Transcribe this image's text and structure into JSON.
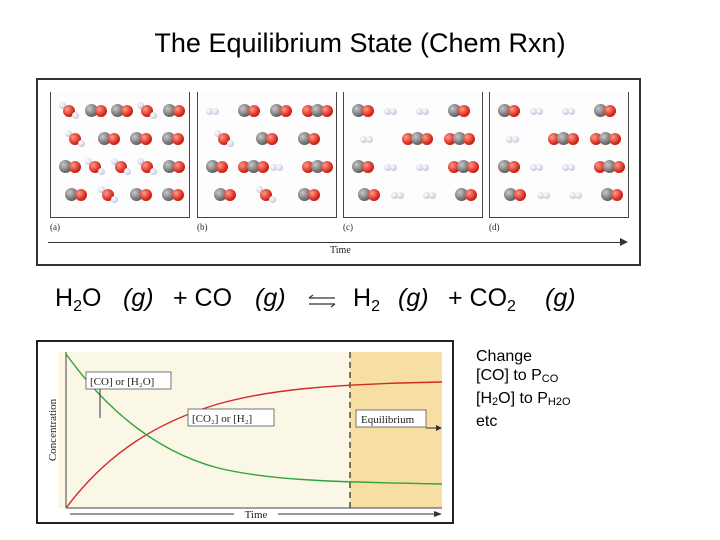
{
  "title": "The Equilibrium State (Chem Rxn)",
  "molecule_figure": {
    "panels": [
      {
        "label": "(a)",
        "molecules": [
          [
            "H2O",
            "CO",
            "CO",
            "H2O",
            "CO"
          ],
          [
            "H2O",
            "CO",
            "CO",
            "CO"
          ],
          [
            "CO",
            "H2O",
            "H2O",
            "H2O",
            "CO"
          ],
          [
            "CO",
            "H2O",
            "CO",
            "CO"
          ]
        ]
      },
      {
        "label": "(b)",
        "molecules": [
          [
            "H2",
            "CO",
            "CO",
            "CO2"
          ],
          [
            "H2O",
            "CO",
            "CO"
          ],
          [
            "CO",
            "CO2",
            "H2",
            "CO2"
          ],
          [
            "CO",
            "H2O",
            "CO"
          ]
        ]
      },
      {
        "label": "(c)",
        "molecules": [
          [
            "CO",
            "H2",
            "H2",
            "CO"
          ],
          [
            "H2",
            "CO2",
            "CO2"
          ],
          [
            "CO",
            "H2",
            "H2",
            "CO2"
          ],
          [
            "CO",
            "H2",
            "H2",
            "CO"
          ]
        ]
      },
      {
        "label": "(d)",
        "molecules": [
          [
            "CO",
            "H2",
            "H2",
            "CO"
          ],
          [
            "H2",
            "CO2",
            "CO2"
          ],
          [
            "CO",
            "H2",
            "H2",
            "CO2"
          ],
          [
            "CO",
            "H2",
            "H2",
            "CO"
          ]
        ]
      }
    ],
    "axis_label": "Time"
  },
  "equation": {
    "left_1": "H",
    "left_1_sub": "2",
    "left_1_rest": "O",
    "left_phase_1": "(g)",
    "plus_1": "+ CO",
    "left_phase_2": "(g)",
    "right_1": "H",
    "right_1_sub": "2",
    "right_phase_1": "(g)",
    "plus_2": "+ CO",
    "plus_2_sub": "2",
    "right_phase_2": "(g)"
  },
  "concentration_chart": {
    "ylabel": "Concentration",
    "xlabel": "Time",
    "label_reactants": "[CO] or [H₂O]",
    "label_products": "[CO₂] or [H₂]",
    "label_equilibrium": "Equilibrium",
    "colors": {
      "reactants": "#2ea43a",
      "products": "#d12a2a",
      "equilibrium_shade": "#f7dfa4"
    }
  },
  "note": {
    "line1": "Change",
    "line2_a": "[CO] to P",
    "line2_sub": "CO",
    "line3_a": "[H",
    "line3_sub1": "2",
    "line3_b": "O] to P",
    "line3_sub2": "H2O",
    "line4": "etc"
  }
}
